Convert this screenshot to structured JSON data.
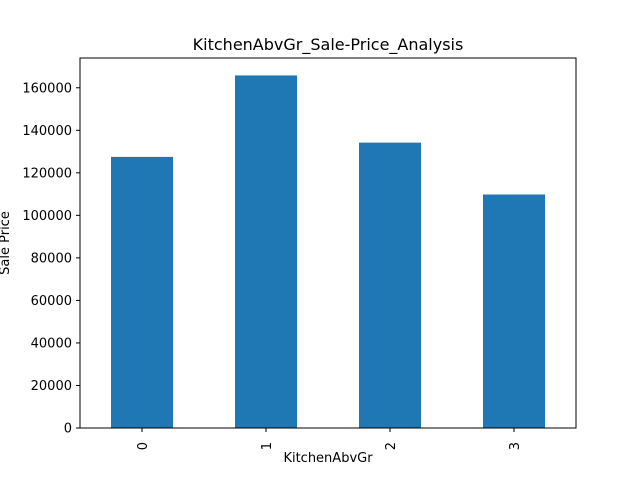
{
  "chart_data": {
    "type": "bar",
    "title": "KitchenAbvGr_Sale-Price_Analysis",
    "xlabel": "KitchenAbvGr",
    "ylabel": "Sale Price",
    "categories": [
      "0",
      "1",
      "2",
      "3"
    ],
    "values": [
      127500,
      165800,
      134200,
      109800
    ],
    "ylim": [
      0,
      174000
    ],
    "yticks": [
      0,
      20000,
      40000,
      60000,
      80000,
      100000,
      120000,
      140000,
      160000
    ],
    "ytick_labels": [
      "0",
      "20000",
      "40000",
      "60000",
      "80000",
      "100000",
      "120000",
      "140000",
      "160000"
    ],
    "bar_color": "#1f77b4",
    "grid": false,
    "legend": "none"
  }
}
